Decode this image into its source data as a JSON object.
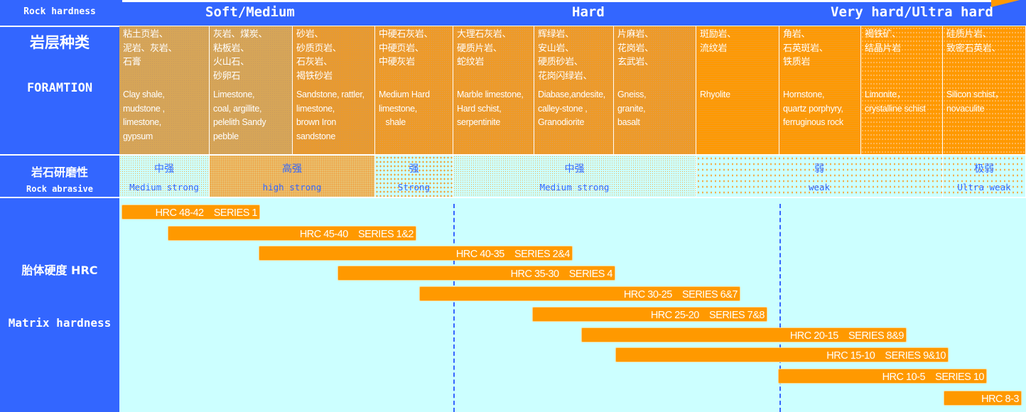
{
  "left_labels": {
    "rock_hardness": "Rock hardness",
    "formation_cn": "岩层种类",
    "formation_en": "FORAMTION",
    "abrasive_cn": "岩石研磨性",
    "abrasive_en": "Rock abrasive",
    "matrix_cn": "胎体硬度 HRC",
    "matrix_en": "Matrix hardness"
  },
  "hardness_header": [
    "Soft/Medium",
    "Hard",
    "Very hard/Ultra hard"
  ],
  "formations": [
    {
      "cn": "粘土页岩、\n泥岩、灰岩、\n石膏",
      "en": "Clay shale,\nmudstone ,\nlimestone,\ngypsum"
    },
    {
      "cn": "灰岩、煤炭、\n粘板岩、\n火山石、\n砂卵石",
      "en": "Limestone,\ncoal, argillite,\npelelith Sandy\npebble"
    },
    {
      "cn": "砂岩、\n砂质页岩、\n石灰岩、\n褐铁砂岩",
      "en": "Sandstone, rattler,\nlimestone,\nbrown Iron\nsandstone"
    },
    {
      "cn": "中硬石灰岩、\n中硬页岩、\n中硬灰岩",
      "en": "Medium Hard\nlimestone,\n   shale"
    },
    {
      "cn": "大理石灰岩、\n硬质片岩、\n蛇纹岩",
      "en": "Marble limestone,\nHard schist,\nserpentinite"
    },
    {
      "cn": "辉绿岩、\n安山岩、\n硬质砂岩、\n花岗闪绿岩、",
      "en": "Diabase,andesite,\ncalley-stone ,\nGranodiorite"
    },
    {
      "cn": "片麻岩、\n花岗岩、\n玄武岩、",
      "en": "Gneiss,\ngranite,\nbasalt"
    },
    {
      "cn": "斑励岩、\n流纹岩",
      "en": "Rhyolite"
    },
    {
      "cn": "角岩、\n石英斑岩、\n铁质岩",
      "en": "Hornstone,\nquartz porphyry,\nferruginous rock"
    },
    {
      "cn": "褐铁矿、\n结晶片岩",
      "en": "Limonite，\ncrystalline schist"
    },
    {
      "cn": "硅质片岩、\n致密石英岩、",
      "en": "Silicon schist，\nnovaculite"
    }
  ],
  "abrasive": [
    {
      "cn": "中强",
      "en": "Medium strong"
    },
    {
      "cn": "高强",
      "en": "high strong"
    },
    {
      "cn": "强",
      "en": "Strong"
    },
    {
      "cn": "中强",
      "en": "Medium strong"
    },
    {
      "cn": "弱",
      "en": "weak"
    },
    {
      "cn": "极弱",
      "en": "Ultra weak"
    }
  ],
  "matrix_bars": [
    "HRC 48-42    SERIES 1",
    "HRC 45-40    SERIES 1&2",
    "HRC 40-35    SERIES 2&4",
    "HRC 35-30    SERIES 4",
    "HRC 30-25    SERIES 6&7",
    "HRC 25-20    SERIES 7&8",
    "HRC 20-15    SERIES 8&9",
    "HRC 15-10    SERIES 9&10",
    "HRC 10-5    SERIES 10",
    "HRC 8-3"
  ],
  "colors": {
    "blue": "#3366ff",
    "orange": "#ff9900",
    "cyan": "#ccffff"
  }
}
